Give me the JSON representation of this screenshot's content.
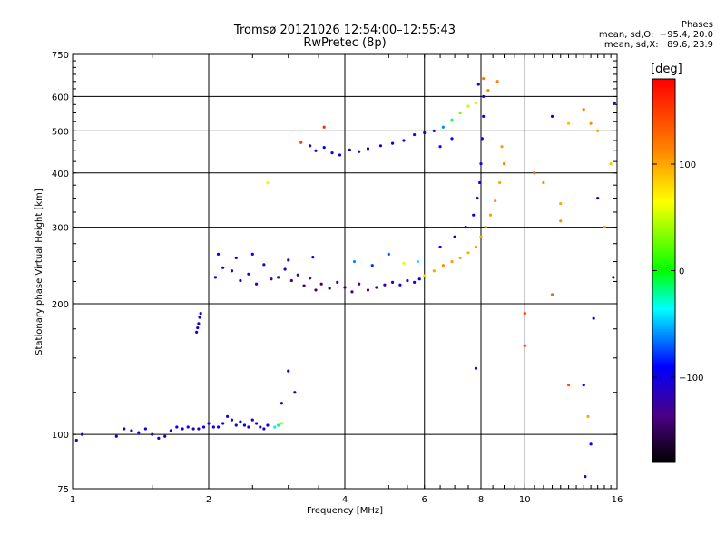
{
  "figure": {
    "title": "Tromsø 20121026 12:54:00–12:55:43",
    "subtitle": "RwPretec (8p)",
    "phases": {
      "heading": "Phases",
      "line_o": "mean, sd,O:  −95.4, 20.0",
      "line_x": "mean, sd,X:   89.6, 23.9"
    },
    "colorbar": {
      "unit": "[deg]",
      "tick_labels": [
        "100",
        "0",
        "−100"
      ],
      "tick_values": [
        100,
        0,
        -100
      ],
      "range": [
        -180,
        180
      ]
    }
  },
  "chart_data": {
    "type": "scatter",
    "xlabel": "Frequency [MHz]",
    "ylabel": "Stationary phase Virtual Height [km]",
    "x_scale": "log",
    "y_scale": "log",
    "xlim": [
      1,
      16
    ],
    "ylim": [
      75,
      750
    ],
    "grid": true,
    "x_ticks": [
      1,
      2,
      4,
      6,
      8,
      10,
      16
    ],
    "x_tick_labels": [
      "1",
      "2",
      "4",
      "6",
      "8",
      "10",
      "16"
    ],
    "y_ticks": [
      75,
      100,
      200,
      300,
      400,
      500,
      600,
      750
    ],
    "y_tick_labels": [
      "75",
      "100",
      "200",
      "300",
      "400",
      "500",
      "600",
      "750"
    ],
    "color_label": "Phase [deg]",
    "points": [
      [
        1.02,
        97,
        -110
      ],
      [
        1.05,
        100,
        -105
      ],
      [
        1.25,
        99,
        -100
      ],
      [
        1.3,
        103,
        -105
      ],
      [
        1.35,
        102,
        -110
      ],
      [
        1.4,
        101,
        -100
      ],
      [
        1.45,
        103,
        -95
      ],
      [
        1.5,
        100,
        -115
      ],
      [
        1.55,
        98,
        -105
      ],
      [
        1.6,
        99,
        -110
      ],
      [
        1.65,
        102,
        -100
      ],
      [
        1.7,
        104,
        -95
      ],
      [
        1.75,
        103,
        -105
      ],
      [
        1.8,
        104,
        -100
      ],
      [
        1.85,
        103,
        -110
      ],
      [
        1.9,
        103,
        -100
      ],
      [
        1.95,
        104,
        -95
      ],
      [
        2.0,
        106,
        -105
      ],
      [
        2.05,
        104,
        -100
      ],
      [
        2.1,
        104,
        -110
      ],
      [
        2.15,
        106,
        -95
      ],
      [
        2.2,
        110,
        -100
      ],
      [
        2.25,
        108,
        -105
      ],
      [
        2.3,
        105,
        -110
      ],
      [
        2.35,
        107,
        -100
      ],
      [
        2.4,
        105,
        -95
      ],
      [
        2.45,
        104,
        -105
      ],
      [
        2.5,
        108,
        -110
      ],
      [
        2.55,
        106,
        -100
      ],
      [
        2.6,
        104,
        -105
      ],
      [
        2.65,
        103,
        -95
      ],
      [
        2.7,
        105,
        -100
      ],
      [
        2.8,
        104,
        -40
      ],
      [
        2.85,
        105,
        -20
      ],
      [
        2.9,
        106,
        40
      ],
      [
        1.88,
        172,
        -105
      ],
      [
        1.9,
        180,
        -110
      ],
      [
        1.91,
        186,
        -100
      ],
      [
        1.89,
        176,
        -95
      ],
      [
        1.92,
        190,
        -105
      ],
      [
        2.9,
        118,
        -100
      ],
      [
        3.0,
        140,
        -110
      ],
      [
        3.1,
        125,
        -105
      ],
      [
        2.07,
        230,
        -100
      ],
      [
        2.15,
        242,
        -110
      ],
      [
        2.25,
        238,
        -105
      ],
      [
        2.35,
        226,
        -95
      ],
      [
        2.45,
        234,
        -110
      ],
      [
        2.55,
        222,
        -115
      ],
      [
        2.65,
        246,
        -120
      ],
      [
        2.75,
        228,
        -130
      ],
      [
        2.85,
        230,
        -125
      ],
      [
        2.95,
        240,
        -110
      ],
      [
        3.05,
        226,
        -135
      ],
      [
        3.15,
        233,
        -120
      ],
      [
        3.25,
        220,
        -140
      ],
      [
        3.35,
        229,
        -130
      ],
      [
        3.45,
        215,
        -145
      ],
      [
        3.55,
        222,
        -140
      ],
      [
        3.7,
        217,
        -150
      ],
      [
        3.85,
        224,
        -135
      ],
      [
        4.0,
        218,
        -145
      ],
      [
        4.15,
        213,
        -140
      ],
      [
        4.3,
        222,
        -130
      ],
      [
        4.5,
        215,
        -135
      ],
      [
        4.7,
        218,
        -125
      ],
      [
        4.9,
        221,
        -120
      ],
      [
        5.1,
        224,
        -115
      ],
      [
        5.3,
        221,
        -110
      ],
      [
        5.5,
        226,
        -105
      ],
      [
        5.7,
        224,
        -100
      ],
      [
        5.85,
        228,
        -90
      ],
      [
        2.1,
        260,
        -105
      ],
      [
        2.3,
        255,
        -95
      ],
      [
        2.5,
        260,
        -100
      ],
      [
        3.0,
        252,
        -105
      ],
      [
        3.4,
        256,
        -95
      ],
      [
        4.2,
        250,
        -60
      ],
      [
        4.6,
        245,
        -80
      ],
      [
        5.0,
        260,
        -70
      ],
      [
        5.4,
        248,
        60
      ],
      [
        5.8,
        250,
        -40
      ],
      [
        6.0,
        232,
        80
      ],
      [
        6.3,
        238,
        100
      ],
      [
        6.6,
        245,
        110
      ],
      [
        6.9,
        250,
        105
      ],
      [
        7.2,
        255,
        100
      ],
      [
        7.5,
        262,
        95
      ],
      [
        7.8,
        270,
        110
      ],
      [
        8.0,
        285,
        100
      ],
      [
        8.2,
        300,
        115
      ],
      [
        8.4,
        320,
        105
      ],
      [
        8.6,
        345,
        110
      ],
      [
        8.8,
        380,
        100
      ],
      [
        9.0,
        420,
        115
      ],
      [
        8.9,
        460,
        105
      ],
      [
        6.5,
        270,
        -95
      ],
      [
        7.0,
        285,
        -100
      ],
      [
        7.4,
        300,
        -105
      ],
      [
        7.7,
        320,
        -95
      ],
      [
        7.85,
        350,
        -110
      ],
      [
        7.95,
        380,
        -100
      ],
      [
        8.0,
        420,
        -105
      ],
      [
        8.05,
        480,
        -95
      ],
      [
        8.1,
        540,
        -110
      ],
      [
        8.1,
        600,
        -100
      ],
      [
        7.9,
        640,
        -105
      ],
      [
        8.1,
        660,
        120
      ],
      [
        8.3,
        620,
        110
      ],
      [
        8.7,
        650,
        115
      ],
      [
        3.35,
        462,
        -100
      ],
      [
        3.45,
        450,
        -110
      ],
      [
        3.6,
        458,
        -95
      ],
      [
        3.75,
        445,
        -105
      ],
      [
        3.9,
        440,
        -100
      ],
      [
        4.1,
        452,
        -110
      ],
      [
        4.3,
        448,
        -95
      ],
      [
        4.5,
        455,
        -105
      ],
      [
        4.8,
        462,
        -100
      ],
      [
        5.1,
        468,
        -95
      ],
      [
        5.4,
        475,
        -90
      ],
      [
        5.7,
        490,
        -100
      ],
      [
        6.0,
        495,
        -95
      ],
      [
        6.3,
        500,
        -85
      ],
      [
        6.6,
        510,
        -60
      ],
      [
        6.9,
        530,
        -20
      ],
      [
        7.2,
        550,
        30
      ],
      [
        7.5,
        570,
        50
      ],
      [
        7.8,
        580,
        80
      ],
      [
        3.2,
        470,
        150
      ],
      [
        3.6,
        510,
        160
      ],
      [
        2.7,
        380,
        60
      ],
      [
        6.5,
        460,
        -100
      ],
      [
        6.9,
        480,
        -95
      ],
      [
        10.5,
        400,
        130
      ],
      [
        11.0,
        380,
        110
      ],
      [
        11.5,
        540,
        -105
      ],
      [
        12.5,
        520,
        90
      ],
      [
        14.0,
        520,
        110
      ],
      [
        14.5,
        500,
        100
      ],
      [
        15.5,
        420,
        90
      ],
      [
        15.8,
        580,
        -100
      ],
      [
        13.5,
        560,
        120
      ],
      [
        12.0,
        340,
        100
      ],
      [
        12.0,
        310,
        110
      ],
      [
        14.5,
        350,
        -100
      ],
      [
        15.0,
        300,
        105
      ],
      [
        15.7,
        230,
        -110
      ],
      [
        11.5,
        210,
        130
      ],
      [
        14.2,
        185,
        -100
      ],
      [
        10.0,
        160,
        150
      ],
      [
        12.5,
        130,
        140
      ],
      [
        13.5,
        130,
        -95
      ],
      [
        13.8,
        110,
        100
      ],
      [
        14.0,
        95,
        -100
      ],
      [
        13.6,
        80,
        -110
      ],
      [
        10.0,
        190,
        150
      ],
      [
        7.8,
        142,
        -100
      ]
    ]
  }
}
